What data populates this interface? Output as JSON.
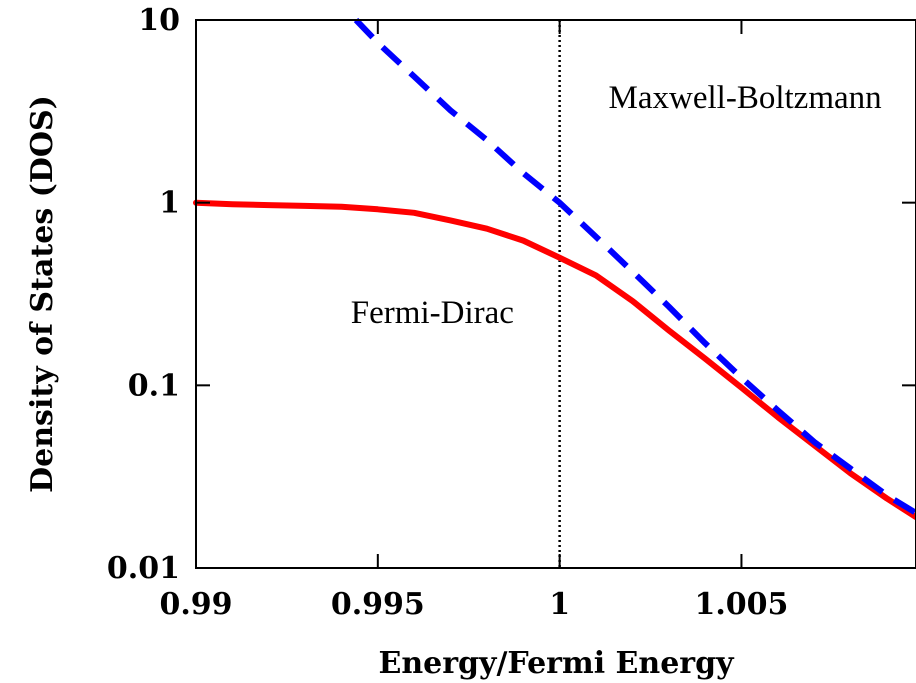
{
  "chart_data": {
    "type": "line",
    "xlabel": "Energy/Fermi Energy",
    "ylabel": "Density of States (DOS)",
    "xlim": [
      0.99,
      1.0098
    ],
    "ylim": [
      0.01,
      10
    ],
    "yscale": "log",
    "x_ticks": [
      "0.99",
      "0.995",
      "1",
      "1.005"
    ],
    "x_tick_values": [
      0.99,
      0.995,
      1.0,
      1.005
    ],
    "y_ticks": [
      "0.01",
      "0.1",
      "1",
      "10"
    ],
    "y_tick_values": [
      0.01,
      0.1,
      1,
      10
    ],
    "grid": false,
    "series": [
      {
        "key": "fd",
        "color": "#ff0000",
        "dash": "solid",
        "x": [
          0.99,
          0.991,
          0.992,
          0.993,
          0.994,
          0.995,
          0.996,
          0.997,
          0.998,
          0.999,
          1.0,
          1.001,
          1.002,
          1.003,
          1.004,
          1.005,
          1.006,
          1.007,
          1.008,
          1.009,
          1.0098
        ],
        "y": [
          1.0,
          0.98,
          0.97,
          0.96,
          0.95,
          0.92,
          0.88,
          0.8,
          0.72,
          0.62,
          0.5,
          0.4,
          0.29,
          0.2,
          0.14,
          0.097,
          0.067,
          0.047,
          0.033,
          0.024,
          0.019
        ]
      },
      {
        "key": "mb",
        "color": "#0000ff",
        "dash": "dashed",
        "x": [
          0.9944,
          0.995,
          0.996,
          0.997,
          0.998,
          0.999,
          1.0,
          1.001,
          1.002,
          1.003,
          1.004,
          1.005,
          1.006,
          1.007,
          1.008,
          1.009,
          1.0098
        ],
        "y": [
          10.0,
          7.5,
          4.9,
          3.2,
          2.2,
          1.45,
          1.0,
          0.65,
          0.42,
          0.27,
          0.17,
          0.11,
          0.073,
          0.049,
          0.035,
          0.025,
          0.02
        ]
      }
    ],
    "vertical_line": {
      "x": 1.0,
      "style": "dotted",
      "color": "#000000"
    },
    "annotations": [
      {
        "key": "mb_label",
        "text": "Maxwell-Boltzmann",
        "x": 1.0051,
        "y": 3.3
      },
      {
        "key": "fd_label",
        "text": "Fermi-Dirac",
        "x": 0.9965,
        "y": 0.22
      }
    ]
  }
}
